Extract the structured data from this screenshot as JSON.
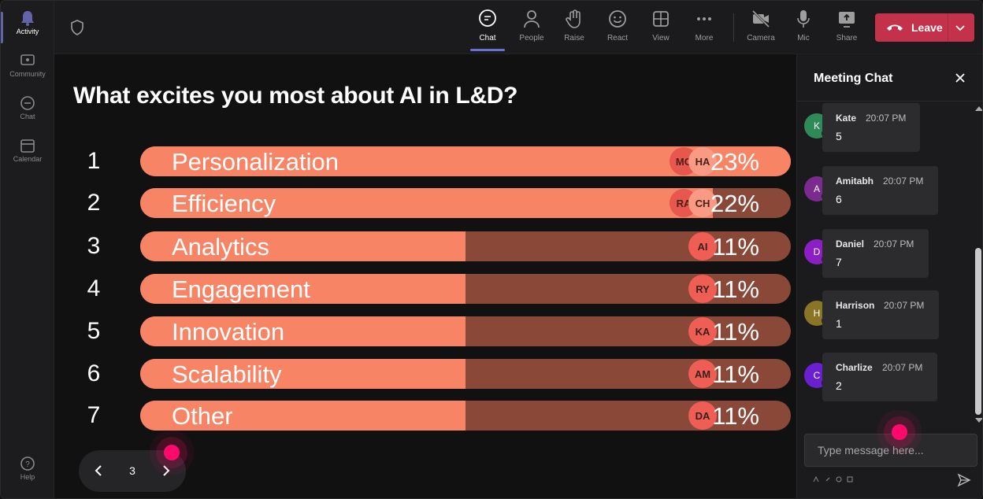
{
  "colors": {
    "accent": "#6b6fd0",
    "bar_fill": "#f88466",
    "bar_track": "#894838",
    "leave": "#c4314b"
  },
  "rail": {
    "items": [
      {
        "label": "Activity",
        "icon": "bell-icon"
      },
      {
        "label": "Community",
        "icon": "community-icon"
      },
      {
        "label": "Chat",
        "icon": "chat-icon"
      },
      {
        "label": "Calendar",
        "icon": "calendar-icon"
      },
      {
        "label": "Help",
        "icon": "help-icon"
      }
    ]
  },
  "toolbar": {
    "chat": "Chat",
    "people": "People",
    "raise": "Raise",
    "react": "React",
    "view": "View",
    "more": "More",
    "camera": "Camera",
    "mic": "Mic",
    "share": "Share",
    "leave": "Leave"
  },
  "poll": {
    "question": "What excites you most about AI in L&D?",
    "options": [
      {
        "rank": "1",
        "label": "Personalization",
        "percent": "23%",
        "avatars": [
          "MC",
          "HA"
        ]
      },
      {
        "rank": "2",
        "label": "Efficiency",
        "percent": "22%",
        "avatars": [
          "RA",
          "CH"
        ]
      },
      {
        "rank": "3",
        "label": "Analytics",
        "percent": "11%",
        "avatars": [
          "AI"
        ]
      },
      {
        "rank": "4",
        "label": "Engagement",
        "percent": "11%",
        "avatars": [
          "RY"
        ]
      },
      {
        "rank": "5",
        "label": "Innovation",
        "percent": "11%",
        "avatars": [
          "KA"
        ]
      },
      {
        "rank": "6",
        "label": "Scalability",
        "percent": "11%",
        "avatars": [
          "AM"
        ]
      },
      {
        "rank": "7",
        "label": "Other",
        "percent": "11%",
        "avatars": [
          "DA"
        ]
      }
    ],
    "bar_fill_fraction": [
      1.0,
      0.88,
      0.5,
      0.5,
      0.5,
      0.5,
      0.5
    ]
  },
  "pager": {
    "page": "3"
  },
  "chat": {
    "title": "Meeting Chat",
    "messages": [
      {
        "initial": "K",
        "name": "Kate",
        "time": "20:07 PM",
        "text": "5",
        "color": "#2e8b57"
      },
      {
        "initial": "A",
        "name": "Amitabh",
        "time": "20:07 PM",
        "text": "6",
        "color": "#7b2a8f"
      },
      {
        "initial": "D",
        "name": "Daniel",
        "time": "20:07 PM",
        "text": "7",
        "color": "#8c1fc4"
      },
      {
        "initial": "H",
        "name": "Harrison",
        "time": "20:07 PM",
        "text": "1",
        "color": "#8a7426"
      },
      {
        "initial": "C",
        "name": "Charlize",
        "time": "20:07 PM",
        "text": "2",
        "color": "#6a1fd0"
      }
    ],
    "placeholder": "Type message here..."
  }
}
